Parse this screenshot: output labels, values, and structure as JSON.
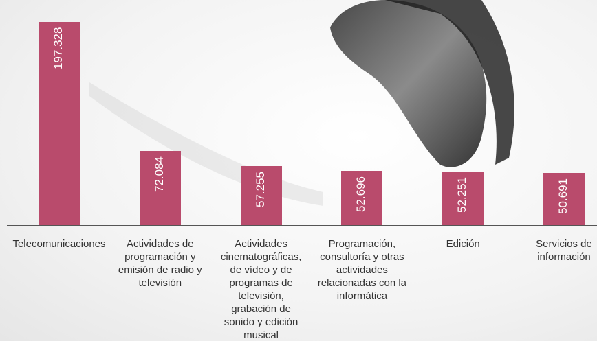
{
  "chart_data": {
    "type": "bar",
    "categories": [
      "Telecomunicaciones",
      "Actividades de programación y emisión de radio y televisión",
      "Actividades cinematográficas, de vídeo y de programas de televisión, grabación de sonido y edición musical",
      "Programación, consultoría y otras actividades relacionadas con la informática",
      "Edición",
      "Servicios de información"
    ],
    "values": [
      197328,
      72084,
      57255,
      52696,
      52251,
      50691
    ],
    "value_labels": [
      "197.328",
      "72.084",
      "57.255",
      "52.696",
      "52.251",
      "50.691"
    ],
    "color": "#b94b6c"
  }
}
